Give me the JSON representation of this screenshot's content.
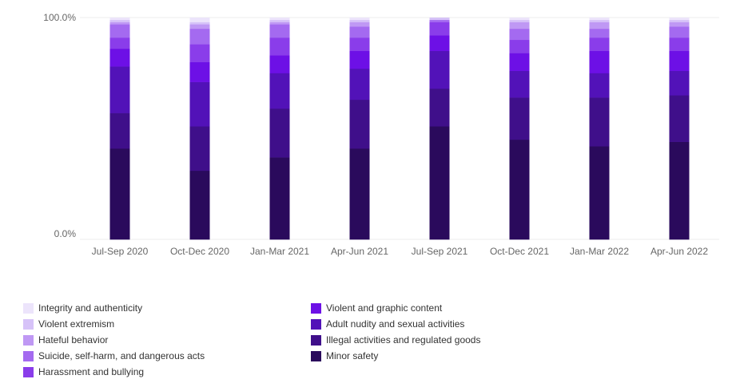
{
  "chart_data": {
    "type": "bar",
    "stacked": true,
    "normalized": true,
    "categories": [
      "Jul-Sep 2020",
      "Oct-Dec 2020",
      "Jan-Mar 2021",
      "Apr-Jun 2021",
      "Jul-Sep 2021",
      "Oct-Dec 2021",
      "Jan-Mar 2022",
      "Apr-Jun 2022"
    ],
    "y_ticks": [
      "0.0%",
      "100.0%"
    ],
    "ylim": [
      0,
      100
    ],
    "grid": false,
    "legend_position": "bottom",
    "series": [
      {
        "name": "Minor safety",
        "color": "#2a0a5c",
        "values": [
          41,
          31,
          37,
          41,
          51,
          45,
          42,
          44
        ]
      },
      {
        "name": "Illegal activities and regulated goods",
        "color": "#3f0f8a",
        "values": [
          16,
          20,
          22,
          22,
          17,
          19,
          22,
          21
        ]
      },
      {
        "name": "Adult nudity and sexual activities",
        "color": "#5212b8",
        "values": [
          21,
          20,
          16,
          14,
          17,
          12,
          11,
          11
        ]
      },
      {
        "name": "Violent and graphic content",
        "color": "#6d10e6",
        "values": [
          8,
          9,
          8,
          8,
          7,
          8,
          10,
          9
        ]
      },
      {
        "name": "Harassment and bullying",
        "color": "#8a3dea",
        "values": [
          5,
          8,
          8,
          6,
          6,
          6,
          6,
          6
        ]
      },
      {
        "name": "Suicide, self-harm, and dangerous acts",
        "color": "#a46af0",
        "values": [
          6,
          7,
          6,
          5,
          1,
          5,
          4,
          5
        ]
      },
      {
        "name": "Hateful behavior",
        "color": "#bf98f4",
        "values": [
          1,
          2,
          1,
          2,
          0,
          3,
          3,
          2
        ]
      },
      {
        "name": "Violent extremism",
        "color": "#d6c2f8",
        "values": [
          1,
          1,
          1,
          1,
          1,
          1,
          1,
          1
        ]
      },
      {
        "name": "Integrity and authenticity",
        "color": "#ece4fb",
        "values": [
          1,
          2,
          1,
          1,
          0,
          1,
          1,
          1
        ]
      }
    ]
  },
  "legend": {
    "order": [
      "Integrity and authenticity",
      "Violent extremism",
      "Hateful behavior",
      "Suicide, self-harm, and dangerous acts",
      "Harassment and bullying",
      "Violent and graphic content",
      "Adult nudity and sexual activities",
      "Illegal activities and regulated goods",
      "Minor safety"
    ]
  }
}
